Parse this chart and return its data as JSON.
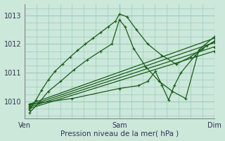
{
  "title": "Pression niveau de la mer( hPa )",
  "x_ticks": [
    0,
    1,
    2
  ],
  "x_tick_labels": [
    "Ven",
    "Sam",
    "Dim"
  ],
  "ylim": [
    1009.4,
    1013.4
  ],
  "yticks": [
    1010,
    1011,
    1012,
    1013
  ],
  "bg_color": "#cce8da",
  "grid_color": "#99ccbb",
  "line_color": "#1a5c1a",
  "series": [
    {
      "x": [
        0.05,
        0.12,
        0.18,
        0.25,
        0.32,
        0.4,
        0.48,
        0.56,
        0.64,
        0.72,
        0.8,
        0.88,
        0.96,
        1.0,
        1.08,
        1.18,
        1.3,
        1.45,
        1.6,
        1.75,
        1.88,
        2.0
      ],
      "y": [
        1009.7,
        1010.05,
        1010.4,
        1010.75,
        1011.05,
        1011.3,
        1011.55,
        1011.78,
        1012.0,
        1012.2,
        1012.4,
        1012.6,
        1012.8,
        1013.05,
        1012.95,
        1012.5,
        1012.0,
        1011.6,
        1011.3,
        1011.55,
        1011.85,
        1012.1
      ],
      "linestyle": "solid"
    },
    {
      "x": [
        0.05,
        0.15,
        0.25,
        0.38,
        0.52,
        0.66,
        0.8,
        0.92,
        1.0,
        1.06,
        1.15,
        1.28,
        1.42,
        1.56,
        1.7,
        1.84,
        2.0
      ],
      "y": [
        1009.6,
        1009.95,
        1010.35,
        1010.7,
        1011.1,
        1011.45,
        1011.75,
        1012.0,
        1012.85,
        1012.6,
        1011.85,
        1011.2,
        1010.7,
        1010.35,
        1010.1,
        1011.8,
        1012.25
      ],
      "linestyle": "solid"
    },
    {
      "x": [
        0.05,
        0.5,
        1.0,
        1.2,
        1.3,
        1.38,
        1.45,
        1.52,
        1.58,
        1.65,
        1.8,
        1.92,
        2.0
      ],
      "y": [
        1009.9,
        1010.1,
        1010.45,
        1010.55,
        1010.7,
        1011.05,
        1010.55,
        1010.05,
        1010.55,
        1011.0,
        1011.6,
        1011.95,
        1012.05
      ],
      "linestyle": "solid"
    },
    {
      "x": [
        0.05,
        2.0
      ],
      "y": [
        1009.9,
        1012.2
      ],
      "linestyle": "solid"
    },
    {
      "x": [
        0.05,
        2.0
      ],
      "y": [
        1009.85,
        1012.05
      ],
      "linestyle": "solid"
    },
    {
      "x": [
        0.05,
        2.0
      ],
      "y": [
        1009.8,
        1011.9
      ],
      "linestyle": "solid"
    },
    {
      "x": [
        0.05,
        2.0
      ],
      "y": [
        1009.75,
        1011.75
      ],
      "linestyle": "solid"
    }
  ]
}
